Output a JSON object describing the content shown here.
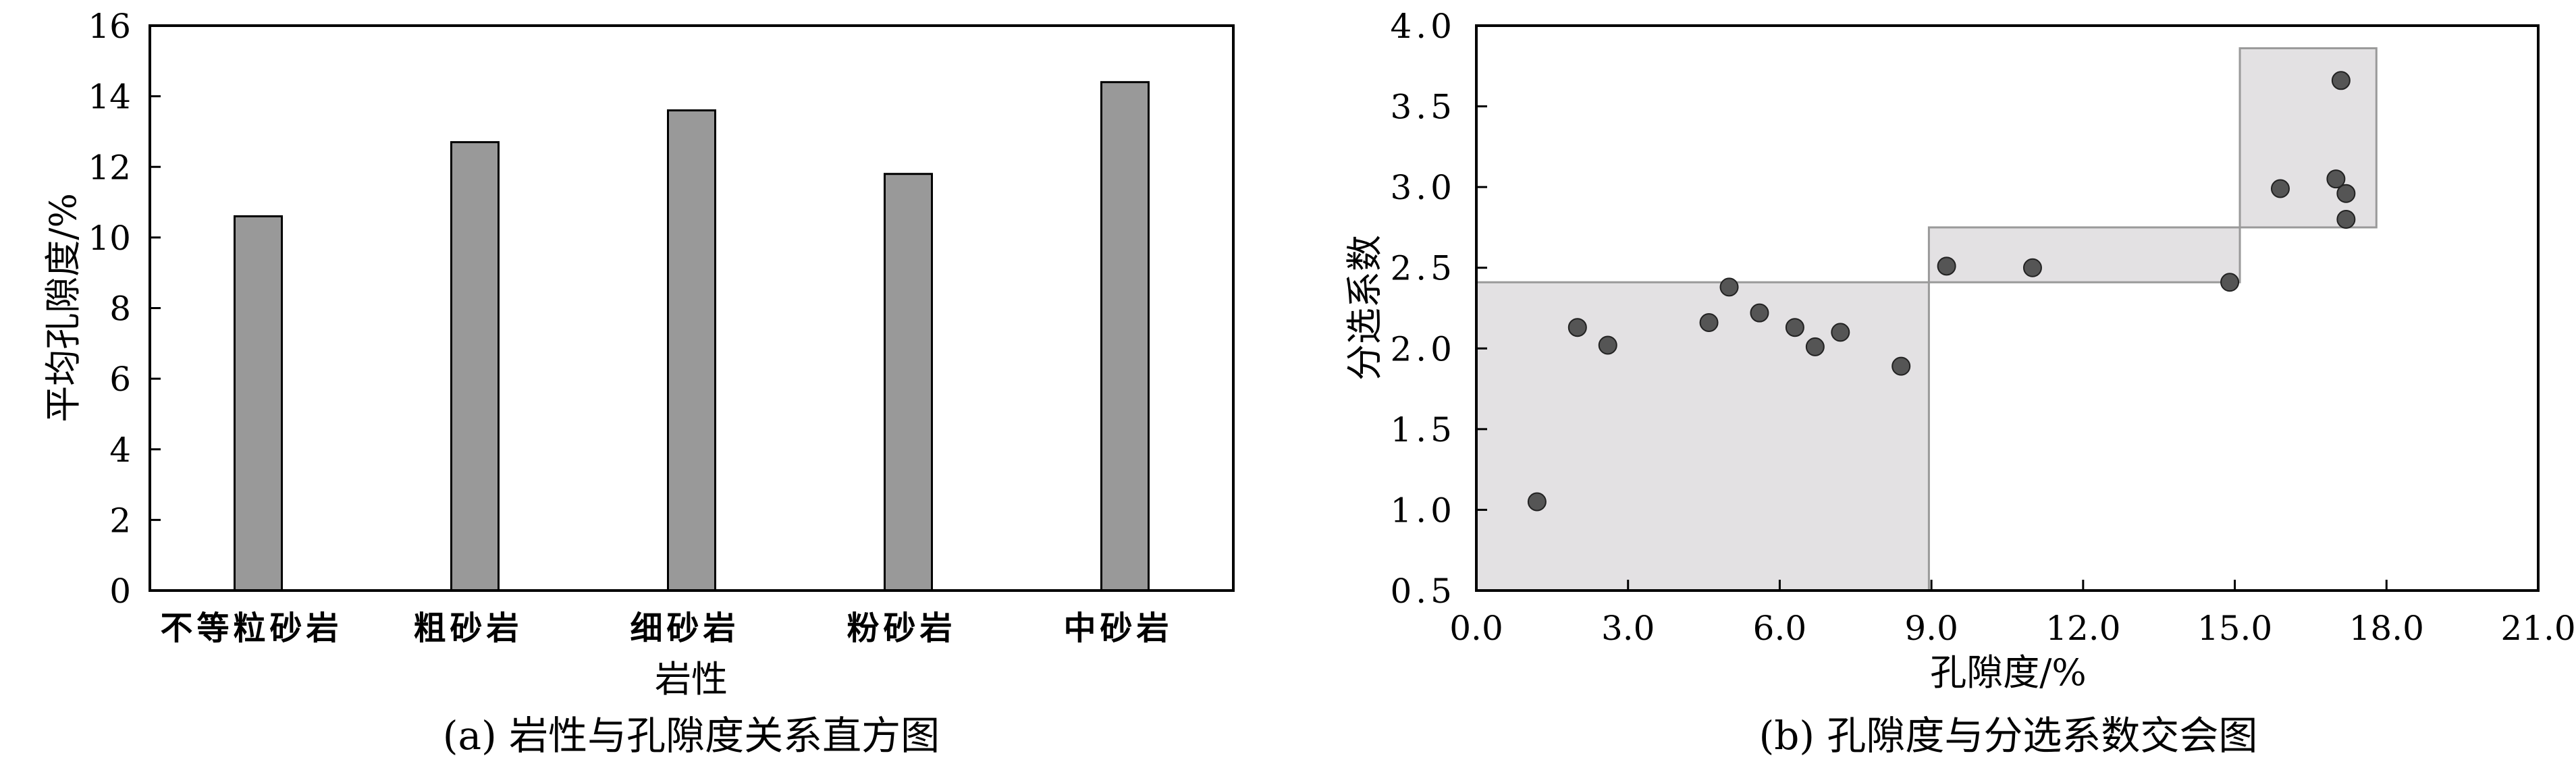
{
  "chart_data": [
    {
      "type": "bar",
      "caption": "(a) 岩性与孔隙度关系直方图",
      "xlabel": "岩性",
      "ylabel": "平均孔隙度/%",
      "categories": [
        "不等粒砂岩",
        "粗砂岩",
        "细砂岩",
        "粉砂岩",
        "中砂岩"
      ],
      "values": [
        10.6,
        12.7,
        13.6,
        11.8,
        14.4
      ],
      "ylim": [
        0,
        16
      ],
      "yticks": [
        0,
        2,
        4,
        6,
        8,
        10,
        12,
        14,
        16
      ],
      "ytick_labels": [
        "0",
        "2",
        "4",
        "6",
        "8",
        "10",
        "12",
        "14",
        "16"
      ],
      "bar_color": "#999999",
      "grid": false
    },
    {
      "type": "scatter",
      "caption": "(b) 孔隙度与分选系数交会图",
      "xlabel": "孔隙度/%",
      "ylabel": "分选系数",
      "xlim": [
        0,
        21
      ],
      "ylim": [
        0.5,
        4.0
      ],
      "xticks": [
        0,
        3,
        6,
        9,
        12,
        15,
        18,
        21
      ],
      "xtick_labels": [
        "0.0",
        "3.0",
        "6.0",
        "9.0",
        "12.0",
        "15.0",
        "18.0",
        "21.0"
      ],
      "yticks": [
        0.5,
        1.0,
        1.5,
        2.0,
        2.5,
        3.0,
        3.5,
        4.0
      ],
      "ytick_labels": [
        "0.5",
        "1.0",
        "1.5",
        "2.0",
        "2.5",
        "3.0",
        "3.5",
        "4.0"
      ],
      "points": [
        {
          "x": 1.2,
          "y": 1.05
        },
        {
          "x": 2.0,
          "y": 2.13
        },
        {
          "x": 2.6,
          "y": 2.02
        },
        {
          "x": 4.6,
          "y": 2.16
        },
        {
          "x": 5.0,
          "y": 2.38
        },
        {
          "x": 5.6,
          "y": 2.22
        },
        {
          "x": 6.3,
          "y": 2.13
        },
        {
          "x": 6.7,
          "y": 2.01
        },
        {
          "x": 7.2,
          "y": 2.1
        },
        {
          "x": 8.4,
          "y": 1.89
        },
        {
          "x": 9.3,
          "y": 2.51
        },
        {
          "x": 11.0,
          "y": 2.5
        },
        {
          "x": 14.9,
          "y": 2.41
        },
        {
          "x": 15.9,
          "y": 2.99
        },
        {
          "x": 17.0,
          "y": 3.05
        },
        {
          "x": 17.2,
          "y": 2.96
        },
        {
          "x": 17.1,
          "y": 3.66
        },
        {
          "x": 17.2,
          "y": 2.8
        }
      ],
      "regions": [
        {
          "x0": 0,
          "x1": 8.95,
          "y0": 0.5,
          "y1": 2.41
        },
        {
          "x0": 8.95,
          "x1": 15.1,
          "y0": 2.41,
          "y1": 2.75
        },
        {
          "x0": 15.1,
          "x1": 17.8,
          "y0": 2.75,
          "y1": 3.86
        }
      ],
      "point_color": "#555555",
      "region_color": "#e3e1e3",
      "grid": false
    }
  ]
}
